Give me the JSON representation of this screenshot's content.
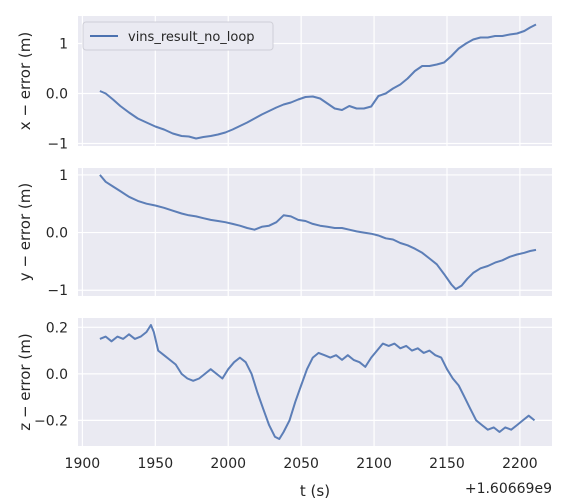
{
  "chart_data": [
    {
      "type": "line",
      "series": [
        {
          "name": "vins_result_no_loop",
          "x": [
            1912,
            1916,
            1921,
            1926,
            1932,
            1938,
            1944,
            1950,
            1956,
            1962,
            1968,
            1973,
            1978,
            1983,
            1988,
            1993,
            1998,
            2003,
            2008,
            2013,
            2018,
            2023,
            2028,
            2033,
            2038,
            2043,
            2048,
            2053,
            2058,
            2063,
            2068,
            2073,
            2078,
            2083,
            2088,
            2093,
            2098,
            2103,
            2108,
            2113,
            2118,
            2123,
            2128,
            2133,
            2138,
            2143,
            2148,
            2153,
            2158,
            2163,
            2168,
            2173,
            2178,
            2183,
            2188,
            2193,
            2198,
            2203,
            2207,
            2211
          ],
          "values": [
            0.05,
            0.0,
            -0.12,
            -0.25,
            -0.38,
            -0.5,
            -0.58,
            -0.66,
            -0.72,
            -0.8,
            -0.85,
            -0.86,
            -0.9,
            -0.87,
            -0.85,
            -0.82,
            -0.78,
            -0.72,
            -0.65,
            -0.58,
            -0.5,
            -0.42,
            -0.35,
            -0.28,
            -0.22,
            -0.18,
            -0.12,
            -0.07,
            -0.06,
            -0.1,
            -0.2,
            -0.3,
            -0.33,
            -0.25,
            -0.3,
            -0.3,
            -0.26,
            -0.05,
            0.0,
            0.1,
            0.18,
            0.3,
            0.45,
            0.55,
            0.55,
            0.58,
            0.62,
            0.75,
            0.9,
            1.0,
            1.08,
            1.12,
            1.12,
            1.15,
            1.15,
            1.18,
            1.2,
            1.25,
            1.32,
            1.38
          ]
        }
      ],
      "ylabel": "x − error (m)",
      "yticks": [
        1,
        0,
        -1
      ],
      "ylim": [
        -1.05,
        1.55
      ],
      "xlim": [
        1897,
        2222
      ],
      "legend": "top-left",
      "grid": true
    },
    {
      "type": "line",
      "series": [
        {
          "name": "vins_result_no_loop",
          "x": [
            1912,
            1916,
            1921,
            1926,
            1932,
            1938,
            1944,
            1950,
            1956,
            1962,
            1968,
            1973,
            1978,
            1983,
            1988,
            1993,
            1998,
            2003,
            2008,
            2013,
            2018,
            2023,
            2028,
            2033,
            2038,
            2043,
            2048,
            2053,
            2058,
            2063,
            2068,
            2073,
            2078,
            2083,
            2088,
            2093,
            2098,
            2103,
            2108,
            2113,
            2118,
            2123,
            2128,
            2133,
            2138,
            2143,
            2148,
            2153,
            2156,
            2160,
            2164,
            2168,
            2173,
            2178,
            2183,
            2188,
            2193,
            2198,
            2203,
            2207,
            2211
          ],
          "values": [
            1.0,
            0.88,
            0.8,
            0.72,
            0.62,
            0.55,
            0.5,
            0.47,
            0.43,
            0.38,
            0.33,
            0.3,
            0.28,
            0.25,
            0.22,
            0.2,
            0.18,
            0.15,
            0.12,
            0.08,
            0.05,
            0.1,
            0.12,
            0.18,
            0.3,
            0.28,
            0.22,
            0.2,
            0.15,
            0.12,
            0.1,
            0.08,
            0.08,
            0.05,
            0.02,
            0.0,
            -0.02,
            -0.05,
            -0.1,
            -0.12,
            -0.18,
            -0.22,
            -0.28,
            -0.35,
            -0.45,
            -0.55,
            -0.72,
            -0.9,
            -0.98,
            -0.92,
            -0.8,
            -0.7,
            -0.62,
            -0.58,
            -0.52,
            -0.48,
            -0.42,
            -0.38,
            -0.35,
            -0.32,
            -0.3
          ]
        }
      ],
      "ylabel": "y − error (m)",
      "yticks": [
        1,
        0,
        -1
      ],
      "ylim": [
        -1.1,
        1.12
      ],
      "xlim": [
        1897,
        2222
      ],
      "grid": true
    },
    {
      "type": "line",
      "series": [
        {
          "name": "vins_result_no_loop",
          "x": [
            1912,
            1916,
            1920,
            1924,
            1928,
            1932,
            1936,
            1940,
            1944,
            1947,
            1949,
            1952,
            1956,
            1960,
            1964,
            1968,
            1972,
            1976,
            1980,
            1984,
            1988,
            1992,
            1996,
            2000,
            2004,
            2008,
            2012,
            2016,
            2020,
            2024,
            2028,
            2032,
            2035,
            2038,
            2042,
            2046,
            2050,
            2054,
            2058,
            2062,
            2066,
            2070,
            2074,
            2078,
            2082,
            2086,
            2090,
            2094,
            2098,
            2102,
            2106,
            2110,
            2114,
            2118,
            2122,
            2126,
            2130,
            2134,
            2138,
            2142,
            2146,
            2150,
            2154,
            2158,
            2162,
            2166,
            2170,
            2174,
            2178,
            2182,
            2186,
            2190,
            2194,
            2198,
            2202,
            2206,
            2210
          ],
          "values": [
            0.15,
            0.16,
            0.14,
            0.16,
            0.15,
            0.17,
            0.15,
            0.16,
            0.18,
            0.21,
            0.18,
            0.1,
            0.08,
            0.06,
            0.04,
            0.0,
            -0.02,
            -0.03,
            -0.02,
            0.0,
            0.02,
            0.0,
            -0.02,
            0.02,
            0.05,
            0.07,
            0.05,
            0.0,
            -0.08,
            -0.15,
            -0.22,
            -0.27,
            -0.28,
            -0.25,
            -0.2,
            -0.12,
            -0.05,
            0.02,
            0.07,
            0.09,
            0.08,
            0.07,
            0.08,
            0.06,
            0.08,
            0.06,
            0.05,
            0.03,
            0.07,
            0.1,
            0.13,
            0.12,
            0.13,
            0.11,
            0.12,
            0.1,
            0.11,
            0.09,
            0.1,
            0.08,
            0.07,
            0.02,
            -0.02,
            -0.05,
            -0.1,
            -0.15,
            -0.2,
            -0.22,
            -0.24,
            -0.23,
            -0.25,
            -0.23,
            -0.24,
            -0.22,
            -0.2,
            -0.18,
            -0.2
          ]
        }
      ],
      "ylabel": "z − error (m)",
      "yticks": [
        0.2,
        0.0,
        -0.2
      ],
      "ylim": [
        -0.31,
        0.24
      ],
      "xlim": [
        1897,
        2222
      ],
      "xticks": [
        1900,
        1950,
        2000,
        2050,
        2100,
        2150,
        2200
      ],
      "xlabel": "t (s)",
      "offset_text": "+1.60669e9",
      "grid": true
    }
  ],
  "colors": {
    "line": "#4c72b0",
    "panel_bg": "#eaeaf2",
    "grid": "#ffffff"
  }
}
